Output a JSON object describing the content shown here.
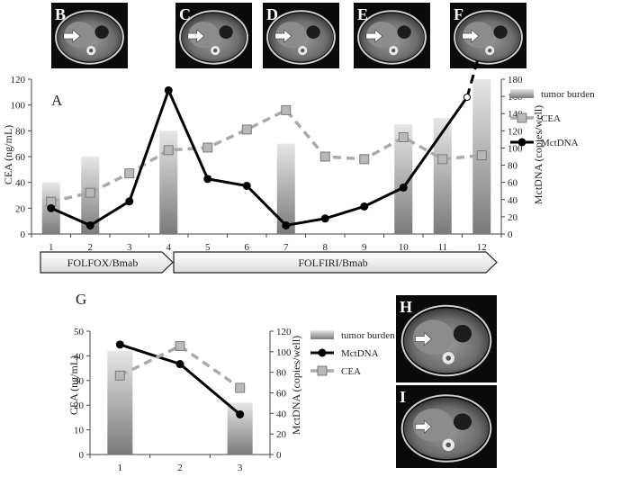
{
  "panel_letters": {
    "A": "A",
    "G": "G"
  },
  "ct_images": [
    {
      "letter": "B",
      "description": "abdominal CT scan with arrow"
    },
    {
      "letter": "C",
      "description": "abdominal CT scan with arrow"
    },
    {
      "letter": "D",
      "description": "abdominal CT scan with arrow"
    },
    {
      "letter": "E",
      "description": "abdominal CT scan with arrow"
    },
    {
      "letter": "F",
      "description": "abdominal CT scan with arrow"
    },
    {
      "letter": "H",
      "description": "abdominal CT scan with arrow"
    },
    {
      "letter": "I",
      "description": "abdominal CT scan with arrow"
    }
  ],
  "treatments": [
    "FOLFOX/Bmab",
    "FOLFIRI/Bmab"
  ],
  "colors": {
    "bar": "#c4c4c4",
    "cea": "#aaaaaa",
    "ctdna": "#000000"
  },
  "chart_data": [
    {
      "type": "bar+line",
      "panel": "A",
      "categories": [
        "1",
        "2",
        "3",
        "4",
        "5",
        "6",
        "7",
        "8",
        "9",
        "10",
        "11",
        "12"
      ],
      "ylabel": "CEA (ng/mL)",
      "y2label": "MctDNA (copies/well)",
      "ylim": [
        0,
        120
      ],
      "y2lim": [
        0,
        180
      ],
      "yticks": [
        "0",
        "20",
        "40",
        "60",
        "80",
        "100",
        "120"
      ],
      "y2ticks": [
        "0",
        "20",
        "40",
        "60",
        "80",
        "100",
        "120",
        "140",
        "160",
        "180"
      ],
      "legend": [
        "tumor burden",
        "CEA",
        "MctDNA"
      ],
      "series": [
        {
          "name": "tumor burden",
          "axis": "left",
          "values": [
            40,
            60,
            null,
            80,
            null,
            null,
            70,
            null,
            null,
            85,
            90,
            120
          ]
        },
        {
          "name": "CEA",
          "axis": "left",
          "values": [
            25,
            32,
            47,
            65,
            67,
            81,
            96,
            60,
            58,
            75,
            58,
            61
          ]
        },
        {
          "name": "MctDNA",
          "axis": "right",
          "values": [
            30,
            10,
            38,
            167,
            64,
            56,
            10,
            18,
            32,
            54,
            null,
            null
          ]
        }
      ],
      "annotation": "MctDNA rises off the axis after point 10"
    },
    {
      "type": "bar+line",
      "panel": "G",
      "categories": [
        "1",
        "2",
        "3"
      ],
      "ylabel": "CEA (ng/mL)",
      "y2label": "MctDNA (copies/well)",
      "ylim": [
        0,
        50
      ],
      "y2lim": [
        0,
        120
      ],
      "yticks": [
        "0",
        "10",
        "20",
        "30",
        "40",
        "50"
      ],
      "y2ticks": [
        "0",
        "20",
        "40",
        "60",
        "80",
        "100",
        "120"
      ],
      "legend": [
        "tumor burden",
        "MctDNA",
        "CEA"
      ],
      "series": [
        {
          "name": "tumor burden",
          "axis": "left",
          "values": [
            42,
            null,
            21
          ]
        },
        {
          "name": "MctDNA",
          "axis": "right",
          "values": [
            107,
            88,
            39
          ]
        },
        {
          "name": "CEA",
          "axis": "left",
          "values": [
            32,
            44,
            27
          ]
        }
      ]
    }
  ]
}
